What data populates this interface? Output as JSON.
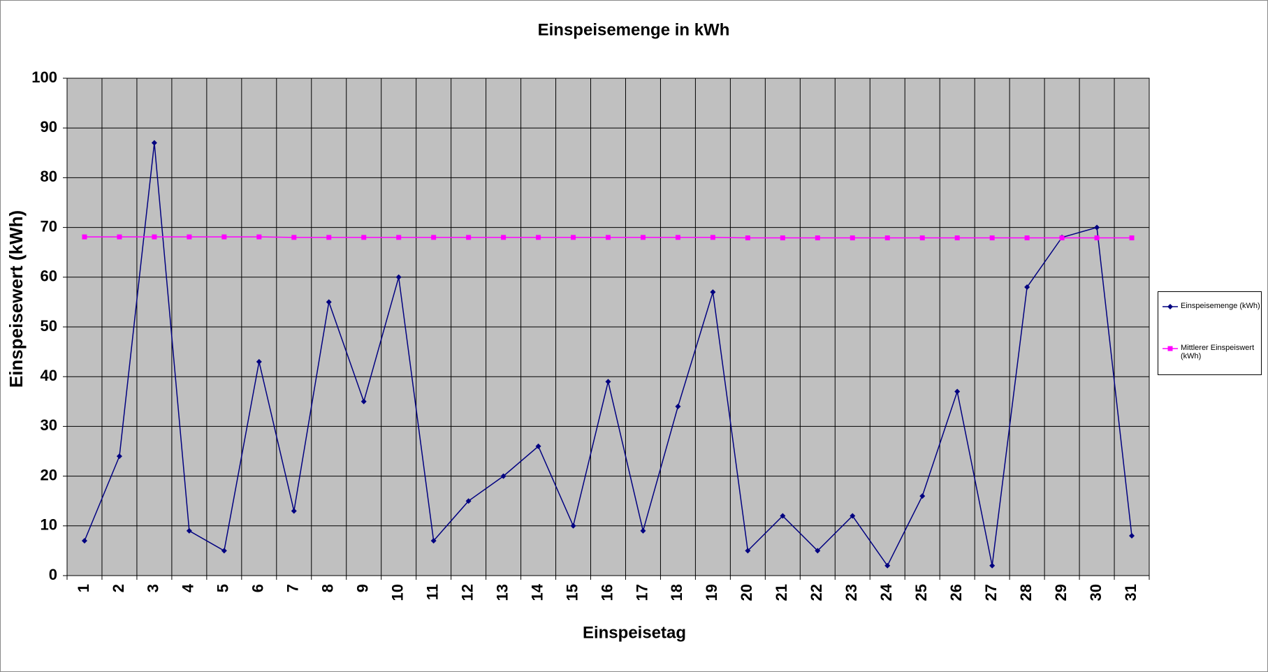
{
  "chart_data": {
    "type": "line",
    "title": "Einspeisemenge in kWh",
    "x_label": "Einspeisetag",
    "y_label": "Einspeisewert  (kWh)",
    "categories": [
      "1",
      "2",
      "3",
      "4",
      "5",
      "6",
      "7",
      "8",
      "9",
      "10",
      "11",
      "12",
      "13",
      "14",
      "15",
      "16",
      "17",
      "18",
      "19",
      "20",
      "21",
      "22",
      "23",
      "24",
      "25",
      "26",
      "27",
      "28",
      "29",
      "30",
      "31"
    ],
    "series": [
      {
        "name": "Einspeisemenge (kWh)",
        "color": "#000080",
        "marker": "diamond",
        "values": [
          7,
          24,
          87,
          9,
          5,
          43,
          13,
          55,
          35,
          60,
          7,
          15,
          20,
          26,
          10,
          39,
          9,
          34,
          57,
          5,
          12,
          5,
          12,
          2,
          16,
          37,
          2,
          58,
          68,
          70,
          8
        ]
      },
      {
        "name": "Mittlerer Einspeiswert (kWh)",
        "color": "#ff00ff",
        "marker": "square",
        "values": [
          68.1,
          68.1,
          68.1,
          68.1,
          68.1,
          68.1,
          68,
          68,
          68,
          68,
          68,
          68,
          68,
          68,
          68,
          68,
          68,
          68,
          68,
          67.9,
          67.9,
          67.9,
          67.9,
          67.9,
          67.9,
          67.9,
          67.9,
          67.9,
          67.9,
          67.9,
          67.9
        ]
      }
    ],
    "ylim": [
      0,
      100
    ],
    "yticks": [
      0,
      10,
      20,
      30,
      40,
      50,
      60,
      70,
      80,
      90,
      100
    ],
    "grid": true,
    "plot_background": "#c0c0c0",
    "legend": "right"
  }
}
